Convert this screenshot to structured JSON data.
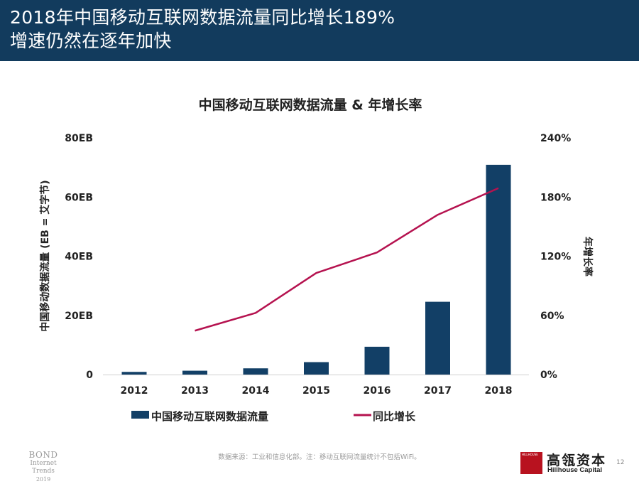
{
  "slide": {
    "title_line1": "2018年中国移动互联网数据流量同比增长189%",
    "title_line2": "增速仍然在逐年加快",
    "page_number": "12"
  },
  "footer": {
    "bond_line1": "BOND",
    "bond_line2": "Internet Trends",
    "bond_line3": "2019",
    "source": "数据来源：工业和信息化部。注：移动互联网流量统计不包括WiFi。",
    "logo_mark_text": "HILLHOUSE",
    "logo_cn": "高瓴资本",
    "logo_en": "Hillhouse Capital"
  },
  "colors": {
    "banner": "#123b5d",
    "bar": "#123f66",
    "line": "#b5124f",
    "logo_red": "#b8121f"
  },
  "chart_data": {
    "type": "bar",
    "title": "中国移动互联网数据流量 & 年增长率",
    "categories": [
      "2012",
      "2013",
      "2014",
      "2015",
      "2016",
      "2017",
      "2018"
    ],
    "ylabel": "中国移动数据流量 (EB = 艾字节)",
    "y2label": "年增长率",
    "ylim": [
      0,
      80
    ],
    "y2lim": [
      0,
      240
    ],
    "yticks": [
      "0",
      "20EB",
      "40EB",
      "60EB",
      "80EB"
    ],
    "y2ticks": [
      "0%",
      "60%",
      "120%",
      "180%",
      "240%"
    ],
    "series": [
      {
        "name": "中国移动互联网数据流量",
        "type": "bar",
        "axis": "left",
        "values": [
          0.9,
          1.3,
          2.1,
          4.2,
          9.4,
          24.6,
          70.9
        ]
      },
      {
        "name": "同比增长",
        "type": "line",
        "axis": "right",
        "values": [
          null,
          44.5,
          62.5,
          103,
          123.8,
          162,
          189
        ]
      }
    ],
    "legend_position": "bottom",
    "grid": false
  }
}
